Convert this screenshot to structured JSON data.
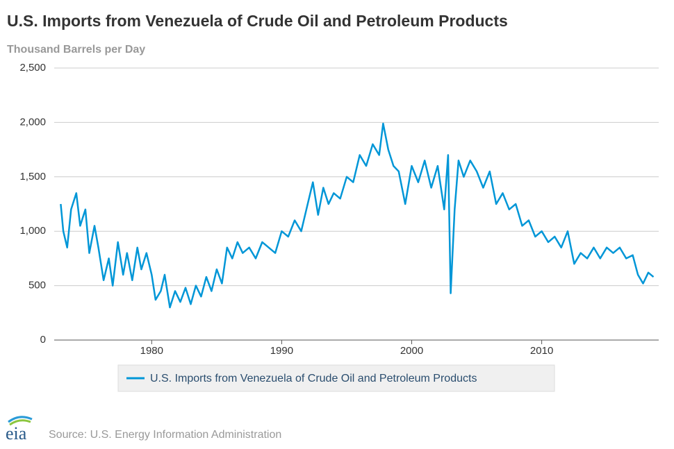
{
  "chart_data": {
    "type": "line",
    "title": "U.S. Imports from Venezuela of Crude Oil and Petroleum Products",
    "y_label": "Thousand Barrels per Day",
    "source": "Source: U.S. Energy Information Administration",
    "logo": "eia",
    "x": [
      1973.0,
      1973.2,
      1973.5,
      1973.8,
      1974.2,
      1974.5,
      1974.9,
      1975.2,
      1975.6,
      1975.9,
      1976.3,
      1976.7,
      1977.0,
      1977.4,
      1977.8,
      1978.1,
      1978.5,
      1978.9,
      1979.2,
      1979.6,
      1980.0,
      1980.3,
      1980.7,
      1981.0,
      1981.4,
      1981.8,
      1982.2,
      1982.6,
      1983.0,
      1983.4,
      1983.8,
      1984.2,
      1984.6,
      1985.0,
      1985.4,
      1985.8,
      1986.2,
      1986.6,
      1987.0,
      1987.5,
      1988.0,
      1988.5,
      1989.0,
      1989.5,
      1990.0,
      1990.5,
      1991.0,
      1991.5,
      1992.0,
      1992.4,
      1992.8,
      1993.2,
      1993.6,
      1994.0,
      1994.5,
      1995.0,
      1995.5,
      1996.0,
      1996.5,
      1997.0,
      1997.5,
      1997.8,
      1998.2,
      1998.6,
      1999.0,
      1999.5,
      2000.0,
      2000.5,
      2001.0,
      2001.5,
      2002.0,
      2002.5,
      2002.8,
      2003.0,
      2003.3,
      2003.6,
      2004.0,
      2004.5,
      2005.0,
      2005.5,
      2006.0,
      2006.5,
      2007.0,
      2007.5,
      2008.0,
      2008.5,
      2009.0,
      2009.5,
      2010.0,
      2010.5,
      2011.0,
      2011.5,
      2012.0,
      2012.5,
      2013.0,
      2013.5,
      2014.0,
      2014.5,
      2015.0,
      2015.5,
      2016.0,
      2016.5,
      2017.0,
      2017.4,
      2017.8,
      2018.2,
      2018.6
    ],
    "series": [
      {
        "name": "U.S. Imports from Venezuela of Crude Oil and Petroleum Products",
        "color": "#0096d7",
        "values": [
          1250,
          1000,
          850,
          1200,
          1350,
          1050,
          1200,
          800,
          1050,
          850,
          550,
          750,
          500,
          900,
          600,
          800,
          550,
          850,
          650,
          800,
          600,
          370,
          450,
          600,
          300,
          450,
          350,
          480,
          330,
          500,
          400,
          580,
          450,
          650,
          520,
          850,
          750,
          900,
          800,
          850,
          750,
          900,
          850,
          800,
          1000,
          950,
          1100,
          1000,
          1250,
          1450,
          1150,
          1400,
          1250,
          1350,
          1300,
          1500,
          1450,
          1700,
          1600,
          1800,
          1700,
          1990,
          1750,
          1600,
          1550,
          1250,
          1600,
          1450,
          1650,
          1400,
          1600,
          1200,
          1700,
          430,
          1200,
          1650,
          1500,
          1650,
          1550,
          1400,
          1550,
          1250,
          1350,
          1200,
          1250,
          1050,
          1100,
          950,
          1000,
          900,
          950,
          850,
          1000,
          700,
          800,
          750,
          850,
          750,
          850,
          800,
          850,
          750,
          780,
          600,
          520,
          620,
          580
        ]
      }
    ],
    "xlim": [
      1972.5,
      2019
    ],
    "xticks": [
      1980,
      1990,
      2000,
      2010
    ],
    "ylim": [
      0,
      2500
    ],
    "yticks": [
      0,
      500,
      {
        "value": 1000,
        "label": "1,000"
      },
      {
        "value": 1500,
        "label": "1,500"
      },
      {
        "value": 2000,
        "label": "2,000"
      },
      {
        "value": 2500,
        "label": "2,500"
      }
    ],
    "grid": true
  }
}
